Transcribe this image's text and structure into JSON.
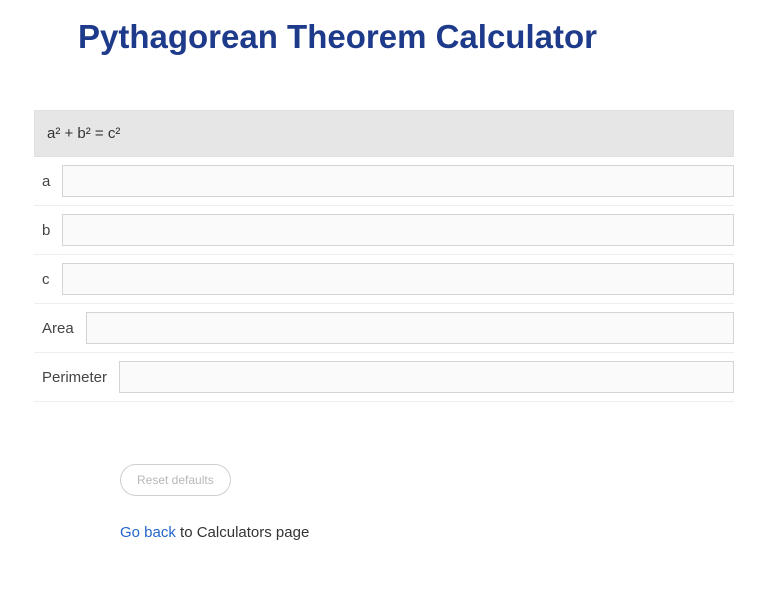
{
  "title": "Pythagorean Theorem Calculator",
  "formula": "a² + b² = c²",
  "fields": {
    "a": {
      "label": "a",
      "value": ""
    },
    "b": {
      "label": "b",
      "value": ""
    },
    "c": {
      "label": "c",
      "value": ""
    },
    "area": {
      "label": "Area",
      "value": ""
    },
    "perimeter": {
      "label": "Perimeter",
      "value": ""
    }
  },
  "reset_button": "Reset defaults",
  "nav": {
    "go_back": "Go back",
    "suffix": " to Calculators page"
  },
  "colors": {
    "title": "#1e3a8a",
    "formula_bg": "#e6e6e6",
    "input_border": "#d4d4d4",
    "input_bg": "#fafafa",
    "link": "#2266cc",
    "reset_text": "#b8b8b8",
    "reset_border": "#d0d0d0"
  }
}
